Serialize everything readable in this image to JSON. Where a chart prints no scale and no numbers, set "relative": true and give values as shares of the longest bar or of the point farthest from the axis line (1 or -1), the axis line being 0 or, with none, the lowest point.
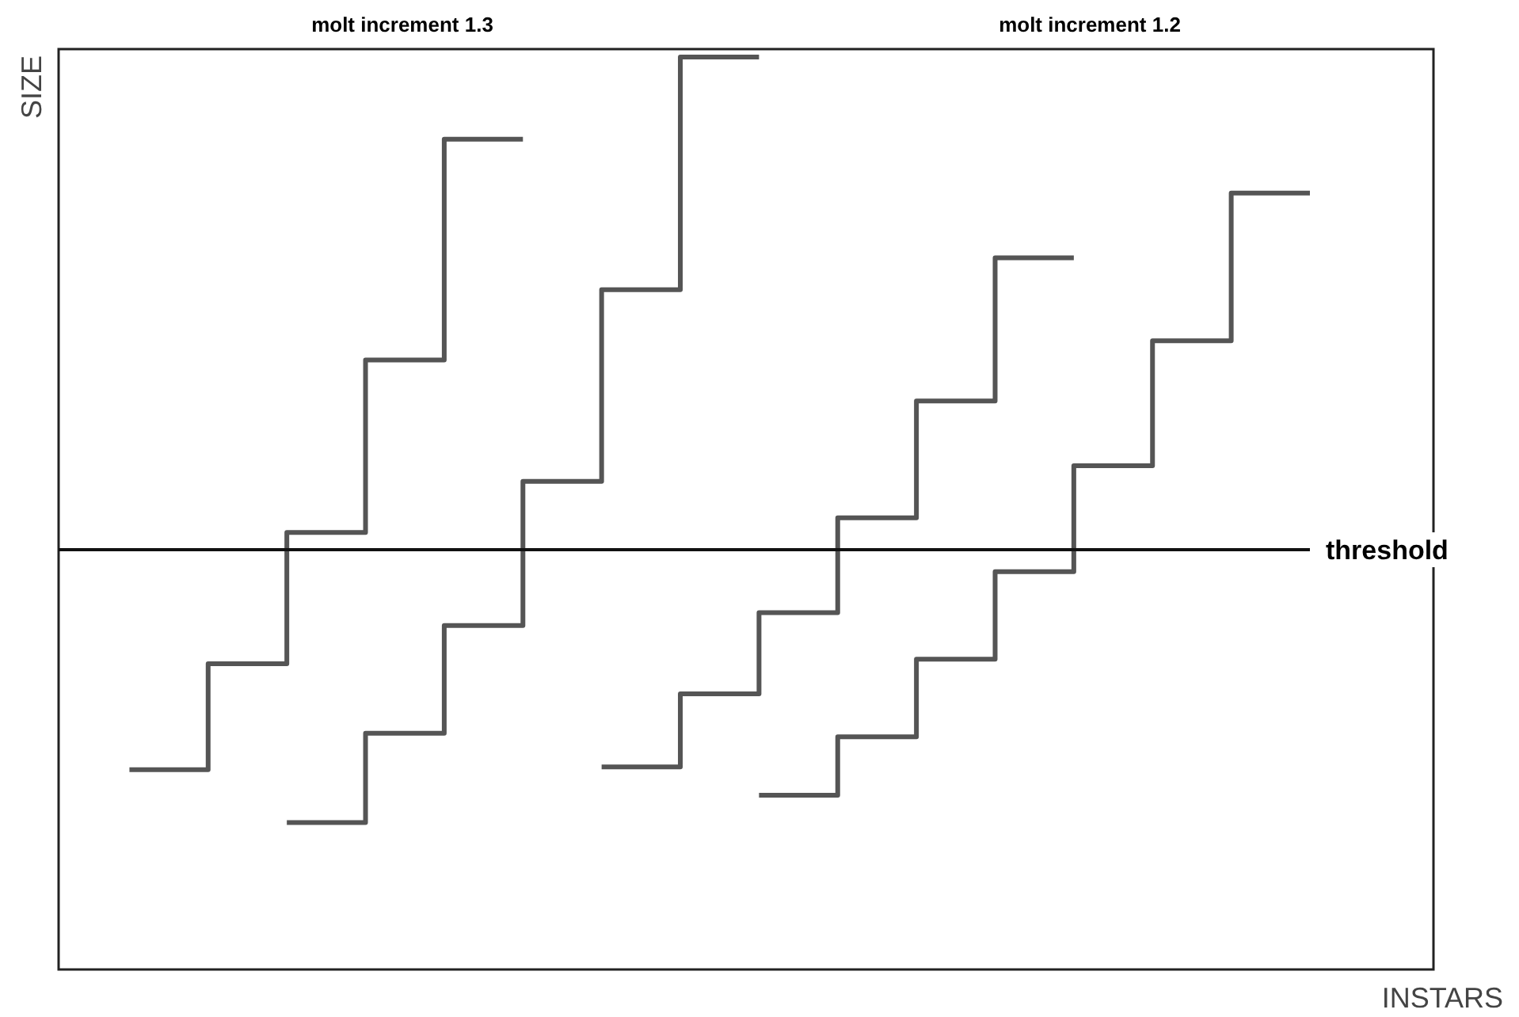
{
  "chart_data": {
    "type": "step",
    "relative": true,
    "xlabel": "INSTARS",
    "ylabel": "SIZE",
    "tick_labels": false,
    "marker": "none",
    "line_style": "solid",
    "categories": [
      null,
      null,
      null,
      null,
      null,
      null,
      null,
      null,
      null,
      null,
      null,
      null,
      null,
      null,
      null,
      null
    ],
    "annotations": [
      "molt increment 1.3",
      "molt increment 1.2"
    ],
    "ref_lines": [
      {
        "axis": "y",
        "value": 0.46,
        "label": "threshold",
        "color": "#111111"
      }
    ],
    "series": [
      {
        "color": "#555555",
        "values": [
          0.219,
          0.335,
          0.479,
          0.668,
          0.91,
          0.91,
          null,
          null,
          null,
          null,
          null,
          null,
          null,
          null,
          null,
          null
        ]
      },
      {
        "color": "#555555",
        "values": [
          null,
          null,
          0.161,
          0.259,
          0.377,
          0.535,
          0.745,
          1,
          1,
          null,
          null,
          null,
          null,
          null,
          null,
          null
        ]
      },
      {
        "color": "#555555",
        "values": [
          null,
          null,
          null,
          null,
          null,
          null,
          0.222,
          0.302,
          0.391,
          0.495,
          0.623,
          0.78,
          0.78,
          null,
          null,
          null
        ]
      },
      {
        "color": "#555555",
        "values": [
          null,
          null,
          null,
          null,
          null,
          null,
          null,
          null,
          0.191,
          0.255,
          0.34,
          0.436,
          0.552,
          0.689,
          0.851,
          0.851
        ]
      }
    ]
  }
}
